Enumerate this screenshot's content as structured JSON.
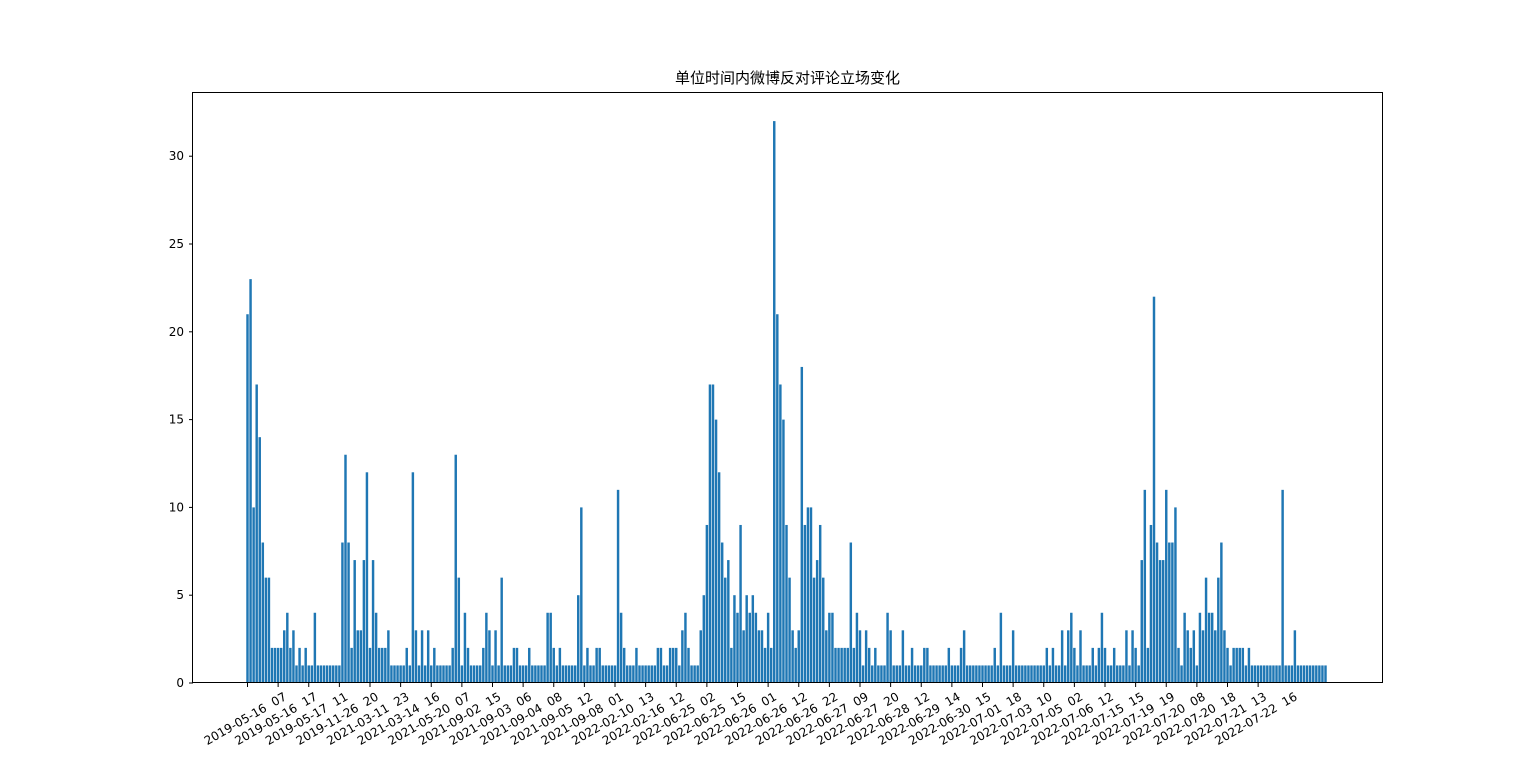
{
  "chart_data": {
    "type": "bar",
    "title": "单位时间内微博反对评论立场变化",
    "xlabel": "",
    "ylabel": "",
    "ylim": [
      0,
      33.6
    ],
    "yticks": [
      0,
      5,
      10,
      15,
      20,
      25,
      30
    ],
    "grid": false,
    "bar_color": "#1f77b4",
    "tick_every": 10,
    "tick_labels": [
      "2019-05-16  07",
      "2019-05-16  17",
      "2019-05-17  11",
      "2019-11-26  20",
      "2021-03-11  23",
      "2021-03-14  16",
      "2021-05-20  07",
      "2021-09-02  15",
      "2021-09-03  06",
      "2021-09-04  08",
      "2021-09-05  12",
      "2021-09-08  01",
      "2022-02-10  13",
      "2022-02-16  12",
      "2022-06-25  02",
      "2022-06-25  15",
      "2022-06-26  01",
      "2022-06-26  12",
      "2022-06-26  22",
      "2022-06-27  09",
      "2022-06-27  20",
      "2022-06-28  12",
      "2022-06-29  14",
      "2022-06-30  15",
      "2022-07-01  18",
      "2022-07-03  10",
      "2022-07-05  02",
      "2022-07-06  12",
      "2022-07-15  15",
      "2022-07-19  19",
      "2022-07-20  08",
      "2022-07-20  18",
      "2022-07-21  13",
      "2022-07-22  16"
    ],
    "values": [
      21,
      23,
      10,
      17,
      14,
      8,
      6,
      6,
      2,
      2,
      2,
      2,
      3,
      4,
      2,
      3,
      1,
      2,
      1,
      2,
      1,
      1,
      4,
      1,
      1,
      1,
      1,
      1,
      1,
      1,
      1,
      8,
      13,
      8,
      2,
      7,
      3,
      3,
      7,
      12,
      2,
      7,
      4,
      2,
      2,
      2,
      3,
      1,
      1,
      1,
      1,
      1,
      2,
      1,
      12,
      3,
      1,
      3,
      1,
      3,
      1,
      2,
      1,
      1,
      1,
      1,
      1,
      2,
      13,
      6,
      1,
      4,
      2,
      1,
      1,
      1,
      1,
      2,
      4,
      3,
      1,
      3,
      1,
      6,
      1,
      1,
      1,
      2,
      2,
      1,
      1,
      1,
      2,
      1,
      1,
      1,
      1,
      1,
      4,
      4,
      2,
      1,
      2,
      1,
      1,
      1,
      1,
      1,
      5,
      10,
      1,
      2,
      1,
      1,
      2,
      2,
      1,
      1,
      1,
      1,
      1,
      11,
      4,
      2,
      1,
      1,
      1,
      2,
      1,
      1,
      1,
      1,
      1,
      1,
      2,
      2,
      1,
      1,
      2,
      2,
      2,
      1,
      3,
      4,
      2,
      1,
      1,
      1,
      3,
      5,
      9,
      17,
      17,
      15,
      12,
      8,
      6,
      7,
      2,
      5,
      4,
      9,
      3,
      5,
      4,
      5,
      4,
      3,
      3,
      2,
      4,
      2,
      32,
      21,
      17,
      15,
      9,
      6,
      3,
      2,
      3,
      18,
      9,
      10,
      10,
      6,
      7,
      9,
      6,
      3,
      4,
      4,
      2,
      2,
      2,
      2,
      2,
      8,
      2,
      4,
      3,
      1,
      3,
      2,
      1,
      2,
      1,
      1,
      1,
      4,
      3,
      1,
      1,
      1,
      3,
      1,
      1,
      2,
      1,
      1,
      1,
      2,
      2,
      1,
      1,
      1,
      1,
      1,
      1,
      2,
      1,
      1,
      1,
      2,
      3,
      1,
      1,
      1,
      1,
      1,
      1,
      1,
      1,
      1,
      2,
      1,
      4,
      1,
      1,
      1,
      3,
      1,
      1,
      1,
      1,
      1,
      1,
      1,
      1,
      1,
      1,
      2,
      1,
      2,
      1,
      1,
      3,
      1,
      3,
      4,
      2,
      1,
      3,
      1,
      1,
      1,
      2,
      1,
      2,
      4,
      2,
      1,
      1,
      2,
      1,
      1,
      1,
      3,
      1,
      3,
      2,
      1,
      7,
      11,
      2,
      9,
      22,
      8,
      7,
      7,
      11,
      8,
      8,
      10,
      2,
      1,
      4,
      3,
      2,
      3,
      1,
      4,
      3,
      6,
      4,
      4,
      3,
      6,
      8,
      3,
      2,
      1,
      2,
      2,
      2,
      2,
      1,
      2,
      1,
      1,
      1,
      1,
      1,
      1,
      1,
      1,
      1,
      1,
      11,
      1,
      1,
      1,
      3,
      1,
      1,
      1,
      1,
      1,
      1,
      1,
      1,
      1,
      1
    ]
  }
}
